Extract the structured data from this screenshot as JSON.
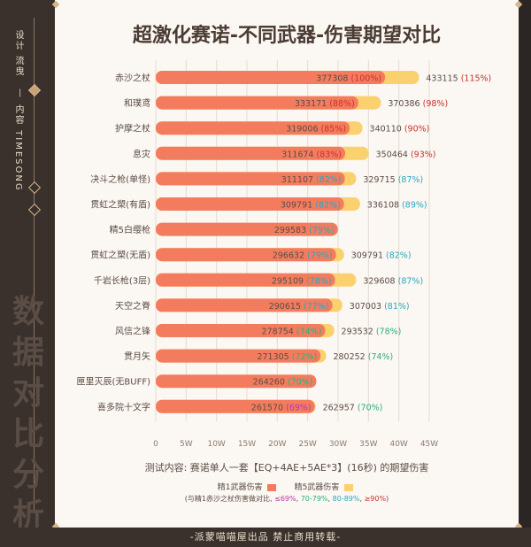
{
  "sidebar": {
    "top_text": "设计 流曳",
    "dash": "—",
    "mid_text": "内容 TIMESONG",
    "watermark": "数据对比分析"
  },
  "footer": "-派蒙喵喵屋出品   禁止商用转载-",
  "colors": {
    "refine1": "#f47c5e",
    "refine5": "#fbd06e",
    "red": "#c8322d",
    "blue": "#2aa7c0",
    "green": "#2cb07e",
    "violet": "#b63aa7",
    "dark": "#5a4d45"
  },
  "chart_data": {
    "type": "bar",
    "orientation": "horizontal",
    "title": "超激化赛诺-不同武器-伤害期望对比",
    "categories": [
      "赤沙之杖",
      "和璞鸢",
      "护摩之杖",
      "息灾",
      "决斗之枪(单怪)",
      "贯虹之槊(有盾)",
      "精5白缨枪",
      "贯虹之槊(无盾)",
      "千岩长枪(3层)",
      "天空之脊",
      "风信之锋",
      "贯月矢",
      "匣里灭辰(无BUFF)",
      "喜多院十文字"
    ],
    "series": [
      {
        "name": "精1武器伤害",
        "values": [
          377308,
          333171,
          319006,
          311674,
          311107,
          309791,
          299583,
          296632,
          295109,
          290615,
          278754,
          271305,
          264260,
          261570
        ],
        "labels": [
          "(100%)",
          "(88%)",
          "(85%)",
          "(83%)",
          "(82%)",
          "(82%)",
          "(79%)",
          "(79%)",
          "(78%)",
          "(77%)",
          "(74%)",
          "(72%)",
          "(70%)",
          "(69%)"
        ],
        "label_colors": [
          "red",
          "red",
          "red",
          "red",
          "blue",
          "blue",
          "blue",
          "blue",
          "blue",
          "blue",
          "green",
          "green",
          "green",
          "violet"
        ]
      },
      {
        "name": "精5武器伤害",
        "values": [
          433115,
          370386,
          340110,
          350464,
          329715,
          336108,
          null,
          309791,
          329608,
          307003,
          293532,
          280252,
          null,
          262957
        ],
        "labels": [
          "(115%)",
          "(98%)",
          "(90%)",
          "(93%)",
          "(87%)",
          "(89%)",
          null,
          "(82%)",
          "(87%)",
          "(81%)",
          "(78%)",
          "(74%)",
          null,
          "(70%)"
        ],
        "label_colors": [
          "red",
          "red",
          "red",
          "red",
          "blue",
          "blue",
          null,
          "blue",
          "blue",
          "blue",
          "green",
          "green",
          null,
          "green"
        ]
      }
    ],
    "xticks": [
      "0",
      "5W",
      "10W",
      "15W",
      "20W",
      "25W",
      "30W",
      "35W",
      "40W",
      "45W"
    ],
    "xlim": [
      0,
      450000
    ],
    "grid": true,
    "legend": "bottom",
    "footnote": "测试内容:  赛诺单人一套【EQ+4AE+5AE*3】(16秒) 的期望伤害",
    "note": {
      "prefix": "(与精1赤沙之杖伤害做对比,",
      "parts": [
        {
          "text": "≤69%",
          "color": "violet"
        },
        {
          "text": "70-79%",
          "color": "green"
        },
        {
          "text": "80-89%",
          "color": "blue"
        },
        {
          "text": "≥90%",
          "color": "red"
        }
      ],
      "suffix": ")"
    }
  }
}
